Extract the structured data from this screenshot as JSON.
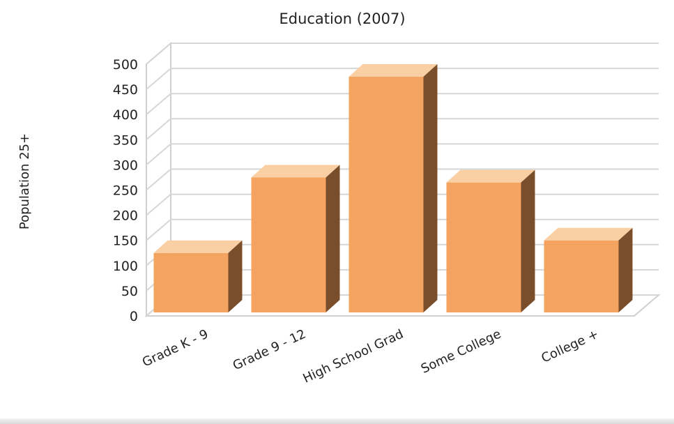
{
  "chart_data": {
    "type": "bar",
    "title": "Education (2007)",
    "ylabel": "Population 25+",
    "xlabel": "",
    "categories": [
      "Grade K - 9",
      "Grade 9 - 12",
      "High School Grad",
      "Some College",
      "College +"
    ],
    "values": [
      125,
      275,
      475,
      265,
      150
    ],
    "ylim": [
      0,
      500
    ],
    "yticks": [
      0,
      50,
      100,
      150,
      200,
      250,
      300,
      350,
      400,
      450,
      500
    ],
    "grid": true,
    "three_d": true,
    "legend": "none"
  },
  "colors": {
    "bar_front": "#f4a460",
    "bar_top": "#f9cfa3",
    "bar_side": "#7a4e2a",
    "grid": "#d6d6d6",
    "frame": "#cfcfcf"
  }
}
